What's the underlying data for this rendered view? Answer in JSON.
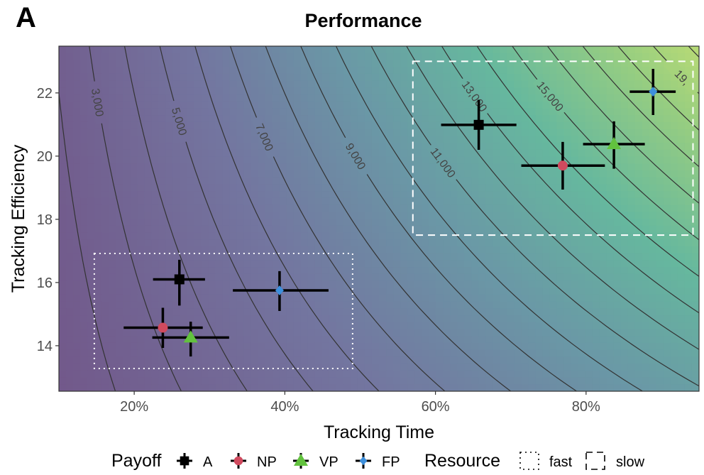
{
  "panel_label": "A",
  "chart_data": {
    "type": "scatter",
    "title": "Performance",
    "xlabel": "Tracking Time",
    "ylabel": "Tracking Efficiency",
    "xlim": [
      10,
      95
    ],
    "ylim": [
      12.56,
      23.48
    ],
    "xticks": [
      20,
      40,
      60,
      80
    ],
    "xtick_labels": [
      "20%",
      "40%",
      "60%",
      "80%"
    ],
    "yticks": [
      14,
      16,
      18,
      20,
      22
    ],
    "ytick_labels": [
      "14",
      "16",
      "18",
      "20",
      "22"
    ],
    "grid": false,
    "contour": {
      "function": "value = 9.1 * time_percent * efficiency",
      "levels": [
        2000,
        3000,
        4000,
        5000,
        6000,
        7000,
        8000,
        9000,
        10000,
        11000,
        12000,
        13000,
        14000,
        15000,
        16000,
        17000,
        18000,
        19000,
        20000
      ],
      "labels": [
        {
          "level": 3000,
          "text": "3,000",
          "at_y": 21.7
        },
        {
          "level": 5000,
          "text": "5,000",
          "at_y": 21.1
        },
        {
          "level": 7000,
          "text": "7,000",
          "at_y": 20.6
        },
        {
          "level": 9000,
          "text": "9,000",
          "at_y": 20.0
        },
        {
          "level": 11000,
          "text": "11,000",
          "at_y": 19.8
        },
        {
          "level": 13000,
          "text": "13,000",
          "at_y": 21.9
        },
        {
          "level": 15000,
          "text": "15,000",
          "at_y": 21.9
        },
        {
          "level": 19000,
          "text": "19,",
          "at_y": 22.5
        }
      ]
    },
    "legend": {
      "placement": "bottom",
      "payoff_title": "Payoff",
      "resource_title": "Resource",
      "payoff": [
        {
          "name": "A",
          "shape": "square",
          "color": "#000000"
        },
        {
          "name": "NP",
          "shape": "circle",
          "color": "#d04a5e"
        },
        {
          "name": "VP",
          "shape": "triangle",
          "color": "#62c23e"
        },
        {
          "name": "FP",
          "shape": "diamond",
          "color": "#3d8fdc"
        }
      ],
      "resource": [
        {
          "name": "fast",
          "linetype": "dotted"
        },
        {
          "name": "slow",
          "linetype": "dashed"
        }
      ]
    },
    "resource_boxes": [
      {
        "name": "fast",
        "x": [
          14.7,
          49.0
        ],
        "y": [
          13.28,
          16.92
        ]
      },
      {
        "name": "slow",
        "x": [
          57.0,
          94.2
        ],
        "y": [
          17.5,
          23.0
        ]
      }
    ],
    "points": [
      {
        "payoff": "A",
        "resource": "fast",
        "x": 26.0,
        "y": 16.1,
        "xmin": 22.5,
        "xmax": 29.4,
        "ymin": 15.27,
        "ymax": 16.72
      },
      {
        "payoff": "NP",
        "resource": "fast",
        "x": 23.8,
        "y": 14.57,
        "xmin": 18.6,
        "xmax": 29.1,
        "ymin": 13.93,
        "ymax": 15.2
      },
      {
        "payoff": "VP",
        "resource": "fast",
        "x": 27.5,
        "y": 14.26,
        "xmin": 22.4,
        "xmax": 32.6,
        "ymin": 13.66,
        "ymax": 14.76
      },
      {
        "payoff": "FP",
        "resource": "fast",
        "x": 39.3,
        "y": 15.75,
        "xmin": 33.1,
        "xmax": 45.8,
        "ymin": 15.1,
        "ymax": 16.36
      },
      {
        "payoff": "A",
        "resource": "slow",
        "x": 65.75,
        "y": 20.99,
        "xmin": 60.75,
        "xmax": 70.75,
        "ymin": 20.2,
        "ymax": 21.78
      },
      {
        "payoff": "NP",
        "resource": "slow",
        "x": 76.9,
        "y": 19.7,
        "xmin": 71.4,
        "xmax": 82.5,
        "ymin": 18.94,
        "ymax": 20.45
      },
      {
        "payoff": "VP",
        "resource": "slow",
        "x": 83.7,
        "y": 20.38,
        "xmin": 79.6,
        "xmax": 87.8,
        "ymin": 19.6,
        "ymax": 21.1
      },
      {
        "payoff": "FP",
        "resource": "slow",
        "x": 88.9,
        "y": 22.04,
        "xmin": 85.8,
        "xmax": 91.9,
        "ymin": 21.3,
        "ymax": 22.76
      }
    ]
  }
}
